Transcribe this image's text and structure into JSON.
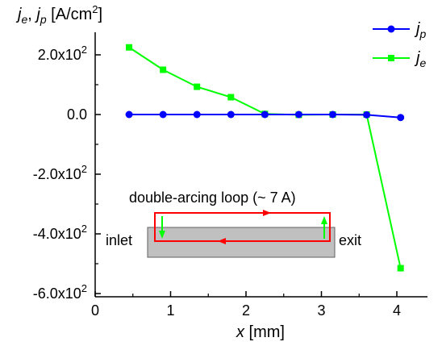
{
  "chart_data": {
    "type": "line",
    "ylabel": "j_e, j_p [A/cm²]",
    "xlabel": "x [mm]",
    "xlim": [
      0,
      4.3
    ],
    "ylim": [
      -600,
      290
    ],
    "x_ticks": [
      0,
      1,
      2,
      3,
      4
    ],
    "y_ticks": [
      {
        "value": 200,
        "label": "2.0x10",
        "exp": "2"
      },
      {
        "value": 0,
        "label": "0.0",
        "exp": ""
      },
      {
        "value": -200,
        "label": "-2.0x10",
        "exp": "2"
      },
      {
        "value": -400,
        "label": "-4.0x10",
        "exp": "2"
      },
      {
        "value": -600,
        "label": "-6.0x10",
        "exp": "2"
      }
    ],
    "legend_placement": "top-right",
    "series": [
      {
        "name": "j_p",
        "color": "#0000ff",
        "marker": "circle",
        "x": [
          0.45,
          0.9,
          1.35,
          1.8,
          2.25,
          2.7,
          3.15,
          3.6,
          4.05
        ],
        "y": [
          0,
          0,
          0,
          0,
          0,
          0,
          0,
          -1,
          -10
        ]
      },
      {
        "name": "j_e",
        "color": "#00ff00",
        "marker": "square",
        "x": [
          0.45,
          0.9,
          1.35,
          1.8,
          2.25,
          2.7,
          3.15,
          3.6,
          4.05
        ],
        "y": [
          225,
          150,
          93,
          58,
          2,
          -1,
          0,
          0,
          -515
        ]
      }
    ],
    "inset": {
      "title": "double-arcing loop (~ 7 A)",
      "left_label": "inlet",
      "right_label": "exit",
      "loop_color": "#ff0000",
      "arrow_color": "#00ff00",
      "block_color": "#c0c0c0"
    }
  },
  "labels": {
    "ylabel_j": "j",
    "ylabel_e": "e",
    "ylabel_sep": ", ",
    "ylabel_p": "p",
    "ylabel_unit": " [A/cm",
    "ylabel_sup": "2",
    "ylabel_close": "]",
    "xlabel_var": "x",
    "xlabel_unit": " [mm]",
    "legend_p_main": "j",
    "legend_p_sub": "p",
    "legend_e_main": "j",
    "legend_e_sub": "e"
  }
}
